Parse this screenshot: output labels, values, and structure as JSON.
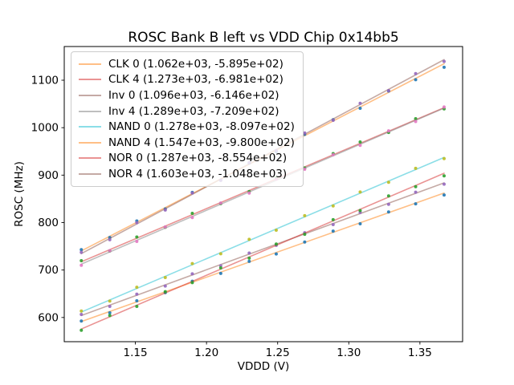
{
  "chart_data": {
    "type": "scatter",
    "title": "ROSC Bank B left vs VDD Chip 0x14bb5",
    "xlabel": "VDDD (V)",
    "ylabel": "ROSC (MHz)",
    "xlim": [
      1.1,
      1.38
    ],
    "ylim": [
      549,
      1171
    ],
    "xticks": [
      1.15,
      1.2,
      1.25,
      1.3,
      1.35
    ],
    "xtick_labels": [
      "1.15",
      "1.20",
      "1.25",
      "1.30",
      "1.35"
    ],
    "yticks": [
      600,
      700,
      800,
      900,
      1000,
      1100
    ],
    "ytick_labels": [
      "600",
      "700",
      "800",
      "900",
      "1000",
      "1100"
    ],
    "grid": false,
    "legend_position": "upper left",
    "line_alpha": 0.5,
    "x": [
      1.112,
      1.132,
      1.151,
      1.171,
      1.19,
      1.21,
      1.23,
      1.249,
      1.269,
      1.289,
      1.308,
      1.328,
      1.347,
      1.367
    ],
    "series": [
      {
        "name": "CLK 0",
        "label": "CLK 0 (1.062e+03, -5.895e+02)",
        "fit_slope": 1062,
        "fit_intercept": -589.5,
        "dot_color": "#1f77b4",
        "line_color": "#ff7f0e",
        "y": [
          592.6,
          609.8,
          635.2,
          652.3,
          676.4,
          692.9,
          718.3,
          733.8,
          759.1,
          782.1,
          797.4,
          822.4,
          839.5,
          858.2
        ]
      },
      {
        "name": "CLK 4",
        "label": "CLK 4 (1.273e+03, -6.981e+02)",
        "fit_slope": 1273,
        "fit_intercept": -698.1,
        "dot_color": "#2ca02c",
        "line_color": "#d62728",
        "y": [
          719.8,
          740.2,
          769.5,
          790.1,
          819.4,
          840.0,
          865.3,
          894.6,
          915.2,
          945.4,
          969.8,
          989.9,
          1018.9,
          1039.6
        ]
      },
      {
        "name": "Inv 0",
        "label": "Inv 0 (1.096e+03, -6.146e+02)",
        "fit_slope": 1096,
        "fit_intercept": -614.6,
        "dot_color": "#9467bd",
        "line_color": "#8c564b",
        "y": [
          606.5,
          623.4,
          649.2,
          666.3,
          692.1,
          709.0,
          735.8,
          752.0,
          778.6,
          795.7,
          821.3,
          838.4,
          864.0,
          880.9
        ]
      },
      {
        "name": "Inv 4",
        "label": "Inv 4 (1.289e+03, -7.209e+02)",
        "fit_slope": 1289,
        "fit_intercept": -720.9,
        "dot_color": "#e377c2",
        "line_color": "#7f7f7f",
        "y": [
          709.9,
          740.8,
          760.2,
          791.0,
          810.5,
          841.3,
          862.1,
          891.6,
          912.3,
          943.1,
          962.6,
          993.4,
          1012.9,
          1043.7
        ]
      },
      {
        "name": "NAND 0",
        "label": "NAND 0 (1.278e+03, -8.097e+02)",
        "fit_slope": 1278,
        "fit_intercept": -809.7,
        "dot_color": "#bcbd22",
        "line_color": "#17becf",
        "y": [
          613.7,
          634.5,
          663.8,
          684.3,
          713.6,
          734.2,
          764.7,
          784.0,
          814.6,
          835.1,
          864.4,
          885.0,
          914.3,
          934.8
        ]
      },
      {
        "name": "NAND 4",
        "label": "NAND 4 (1.547e+03, -9.800e+02)",
        "fit_slope": 1547,
        "fit_intercept": -980.0,
        "dot_color": "#1f77b4",
        "line_color": "#ff7f0e",
        "y": [
          743.0,
          768.5,
          803.3,
          828.8,
          863.6,
          889.2,
          925.5,
          949.5,
          985.9,
          1016.8,
          1040.8,
          1077.1,
          1101.1,
          1127.3
        ]
      },
      {
        "name": "NOR 0",
        "label": "NOR 0 (1.287e+03, -8.554e+02)",
        "fit_slope": 1287,
        "fit_intercept": -855.4,
        "dot_color": "#2ca02c",
        "line_color": "#d62728",
        "y": [
          573.1,
          604.2,
          623.3,
          654.4,
          673.5,
          704.6,
          725.0,
          754.8,
          775.2,
          806.1,
          825.4,
          856.3,
          875.6,
          898.5
        ]
      },
      {
        "name": "NOR 4",
        "label": "NOR 4 (1.603e+03, -1.048e+03)",
        "fit_slope": 1603,
        "fit_intercept": -1048.0,
        "dot_color": "#9467bd",
        "line_color": "#8c564b",
        "y": [
          737.2,
          763.9,
          799.8,
          826.4,
          862.3,
          888.9,
          926.4,
          951.5,
          988.9,
          1015.6,
          1051.4,
          1078.1,
          1113.9,
          1139.6
        ]
      }
    ]
  }
}
